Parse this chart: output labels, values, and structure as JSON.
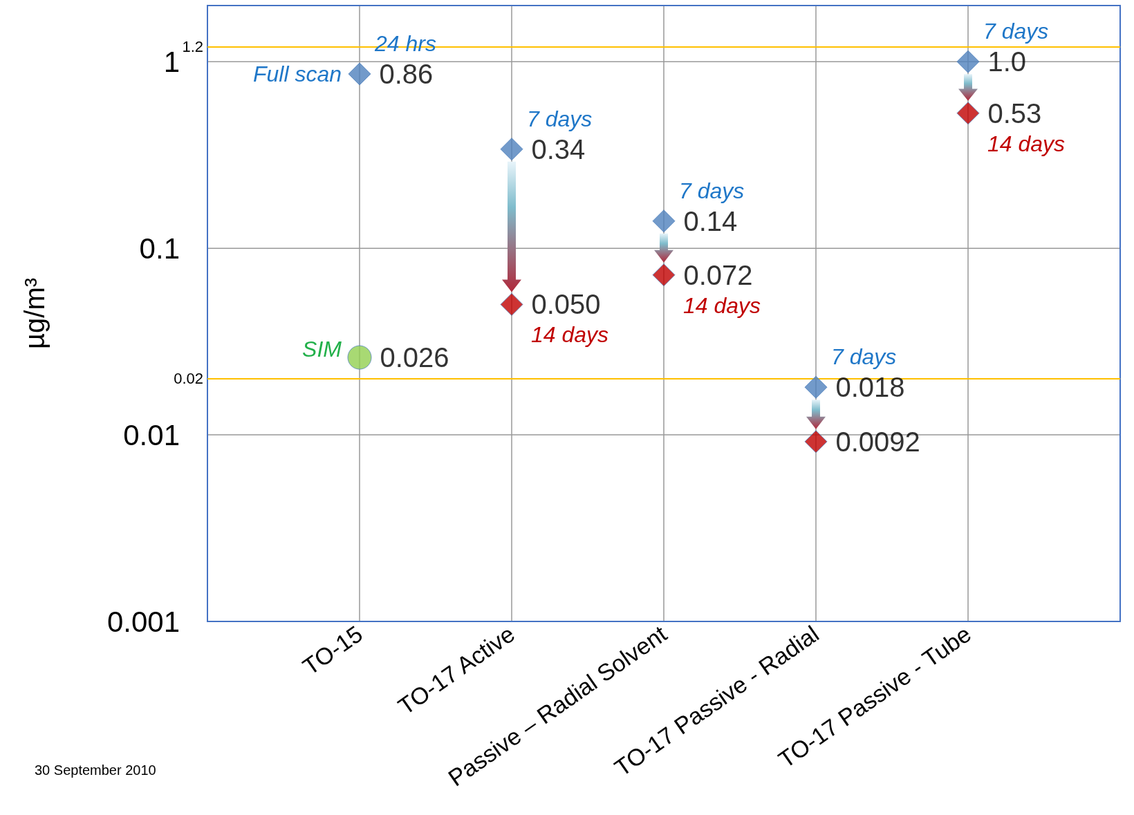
{
  "chart_data": {
    "type": "scatter",
    "ylabel": "µg/m³",
    "log": "y",
    "grid": true,
    "categories": [
      "TO-15",
      "TO-17 Active",
      "Passive – Radial Solvent",
      "TO-17 Passive - Radial",
      "TO-17 Passive - Tube"
    ],
    "ylim": [
      0.001,
      2
    ],
    "yticks": [
      0.001,
      0.01,
      0.1,
      1
    ],
    "series": [
      {
        "color": "#4f81bd",
        "marker": "diamond",
        "values": [
          0.86,
          0.34,
          0.14,
          0.018,
          1.0
        ],
        "value_labels": [
          "0.86",
          "0.34",
          "0.14",
          "0.018",
          "1.0"
        ]
      },
      {
        "color": "#c00000",
        "marker": "diamond",
        "values": [
          null,
          0.05,
          0.072,
          0.0092,
          0.53
        ],
        "value_labels": [
          null,
          "0.050",
          "0.072",
          "0.0092",
          "0.53"
        ]
      },
      {
        "color": "#92d050",
        "marker": "circle",
        "values": [
          0.026,
          null,
          null,
          null,
          null
        ],
        "value_labels": [
          "0.026",
          null,
          null,
          null,
          null
        ]
      }
    ],
    "ref_lines": [
      {
        "axis": "y",
        "value": 1.2,
        "label": "1.2",
        "color": "#ffc000"
      },
      {
        "axis": "y",
        "value": 0.02,
        "label": "0.02",
        "color": "#ffc000"
      }
    ],
    "annotations": [
      {
        "text": "24 hrs",
        "x": "TO-15",
        "y": 0.86
      },
      {
        "text": "Full scan",
        "x": "TO-15",
        "y": 0.86
      },
      {
        "text": "SIM",
        "x": "TO-15",
        "y": 0.026
      },
      {
        "text": "7 days",
        "x": "TO-17 Active",
        "y": 0.34
      },
      {
        "text": "14 days",
        "x": "TO-17 Active",
        "y": 0.05
      },
      {
        "text": "7 days",
        "x": "Passive – Radial Solvent",
        "y": 0.14
      },
      {
        "text": "14 days",
        "x": "Passive – Radial Solvent",
        "y": 0.072
      },
      {
        "text": "7 days",
        "x": "TO-17 Passive - Radial",
        "y": 0.018
      },
      {
        "text": "7 days",
        "x": "TO-17 Passive - Tube",
        "y": 1.0
      },
      {
        "text": "14 days",
        "x": "TO-17 Passive - Tube",
        "y": 0.53
      },
      "30 September 2010"
    ]
  }
}
